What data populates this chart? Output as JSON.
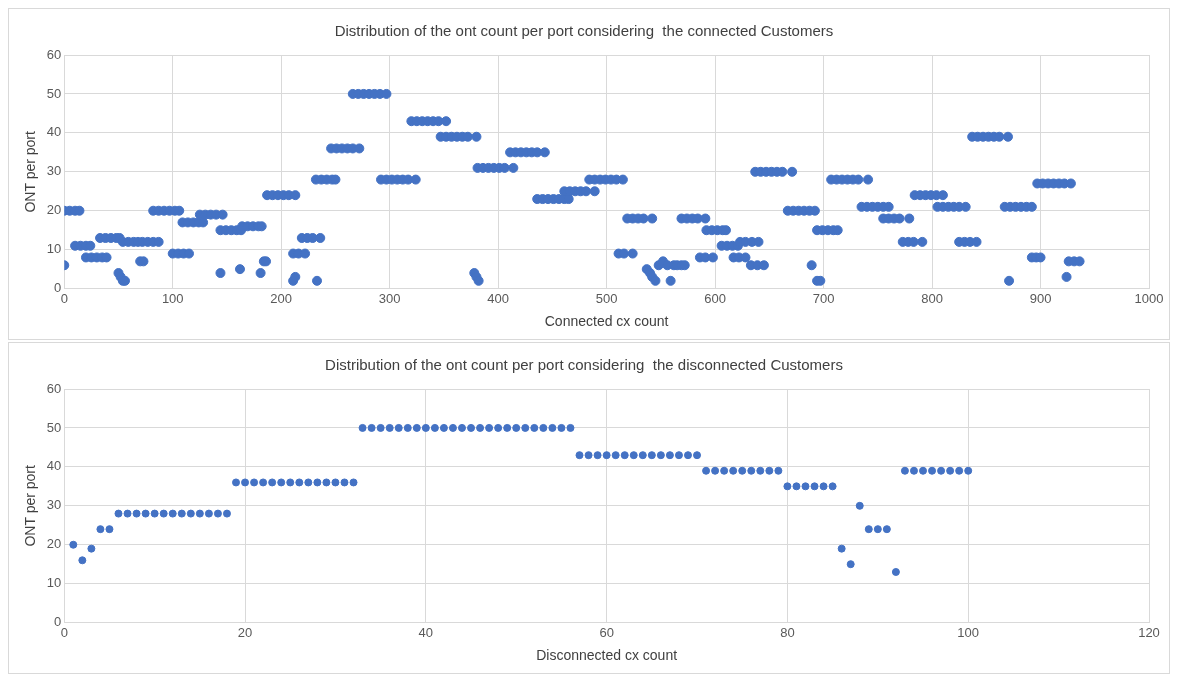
{
  "chart_data": [
    {
      "type": "scatter",
      "title": "Distribution of the ont count per port considering  the connected Customers",
      "xlabel": "Connected cx count",
      "ylabel": "ONT per port",
      "xlim": [
        0,
        1000
      ],
      "xticks": [
        0,
        100,
        200,
        300,
        400,
        500,
        600,
        700,
        800,
        900,
        1000
      ],
      "ylim": [
        0,
        60
      ],
      "yticks": [
        0,
        10,
        20,
        30,
        40,
        50,
        60
      ],
      "grid": true,
      "legend": false,
      "marker": "circle",
      "series": [
        {
          "color": "#4472c4",
          "x": [
            0,
            0,
            5,
            10,
            14,
            10,
            15,
            20,
            24,
            20,
            25,
            30,
            35,
            39,
            33,
            38,
            43,
            48,
            51,
            50,
            52,
            54,
            56,
            54,
            59,
            64,
            68,
            70,
            73,
            72,
            77,
            82,
            87,
            82,
            87,
            92,
            97,
            102,
            106,
            100,
            105,
            110,
            115,
            109,
            114,
            119,
            124,
            128,
            125,
            130,
            135,
            140,
            146,
            144,
            144,
            149,
            154,
            159,
            163,
            162,
            164,
            169,
            174,
            179,
            182,
            181,
            184,
            186,
            187,
            192,
            197,
            202,
            207,
            213,
            211,
            213,
            211,
            216,
            222,
            219,
            224,
            229,
            236,
            233,
            232,
            237,
            242,
            247,
            250,
            246,
            251,
            256,
            261,
            266,
            272,
            266,
            271,
            276,
            281,
            286,
            291,
            297,
            292,
            297,
            302,
            307,
            312,
            317,
            324,
            320,
            325,
            330,
            335,
            340,
            345,
            352,
            347,
            352,
            357,
            362,
            367,
            372,
            380,
            378,
            380,
            382,
            381,
            386,
            391,
            396,
            401,
            406,
            414,
            411,
            416,
            421,
            426,
            431,
            436,
            443,
            436,
            441,
            446,
            451,
            456,
            461,
            465,
            461,
            466,
            471,
            476,
            481,
            489,
            484,
            489,
            494,
            499,
            504,
            509,
            515,
            511,
            516,
            524,
            519,
            524,
            529,
            534,
            542,
            537,
            540,
            542,
            545,
            548,
            552,
            556,
            559,
            562,
            565,
            569,
            572,
            569,
            574,
            579,
            584,
            591,
            586,
            591,
            598,
            592,
            597,
            602,
            607,
            610,
            606,
            611,
            616,
            621,
            617,
            622,
            628,
            623,
            628,
            634,
            640,
            633,
            639,
            645,
            637,
            642,
            647,
            652,
            657,
            662,
            671,
            667,
            672,
            677,
            682,
            687,
            692,
            689,
            694,
            697,
            694,
            699,
            704,
            709,
            713,
            707,
            712,
            717,
            722,
            727,
            732,
            741,
            735,
            740,
            745,
            750,
            755,
            760,
            755,
            760,
            765,
            770,
            779,
            773,
            778,
            783,
            791,
            784,
            789,
            794,
            799,
            804,
            810,
            805,
            810,
            815,
            820,
            825,
            831,
            825,
            830,
            835,
            841,
            837,
            842,
            847,
            852,
            857,
            862,
            870,
            871,
            867,
            872,
            877,
            882,
            887,
            892,
            892,
            896,
            900,
            897,
            902,
            907,
            912,
            917,
            922,
            928,
            924,
            926,
            931,
            936
          ],
          "values": [
            6,
            20,
            20,
            20,
            20,
            11,
            11,
            11,
            11,
            8,
            8,
            8,
            8,
            8,
            13,
            13,
            13,
            13,
            13,
            4,
            3,
            2,
            2,
            12,
            12,
            12,
            12,
            7,
            7,
            12,
            12,
            12,
            12,
            20,
            20,
            20,
            20,
            20,
            20,
            9,
            9,
            9,
            9,
            17,
            17,
            17,
            17,
            17,
            19,
            19,
            19,
            19,
            19,
            4,
            15,
            15,
            15,
            15,
            15,
            5,
            16,
            16,
            16,
            16,
            16,
            4,
            7,
            7,
            24,
            24,
            24,
            24,
            24,
            24,
            2,
            3,
            9,
            9,
            9,
            13,
            13,
            13,
            13,
            2,
            28,
            28,
            28,
            28,
            28,
            36,
            36,
            36,
            36,
            36,
            36,
            50,
            50,
            50,
            50,
            50,
            50,
            50,
            28,
            28,
            28,
            28,
            28,
            28,
            28,
            43,
            43,
            43,
            43,
            43,
            43,
            43,
            39,
            39,
            39,
            39,
            39,
            39,
            39,
            4,
            3,
            2,
            31,
            31,
            31,
            31,
            31,
            31,
            31,
            35,
            35,
            35,
            35,
            35,
            35,
            35,
            23,
            23,
            23,
            23,
            23,
            23,
            23,
            25,
            25,
            25,
            25,
            25,
            25,
            28,
            28,
            28,
            28,
            28,
            28,
            28,
            9,
            9,
            9,
            18,
            18,
            18,
            18,
            18,
            5,
            4,
            3,
            2,
            6,
            7,
            6,
            2,
            6,
            6,
            6,
            6,
            18,
            18,
            18,
            18,
            18,
            8,
            8,
            8,
            15,
            15,
            15,
            15,
            15,
            11,
            11,
            11,
            11,
            8,
            8,
            8,
            12,
            12,
            12,
            12,
            6,
            6,
            6,
            30,
            30,
            30,
            30,
            30,
            30,
            30,
            20,
            20,
            20,
            20,
            20,
            20,
            6,
            2,
            2,
            15,
            15,
            15,
            15,
            15,
            28,
            28,
            28,
            28,
            28,
            28,
            28,
            21,
            21,
            21,
            21,
            21,
            21,
            18,
            18,
            18,
            18,
            18,
            12,
            12,
            12,
            12,
            24,
            24,
            24,
            24,
            24,
            24,
            21,
            21,
            21,
            21,
            21,
            21,
            12,
            12,
            12,
            12,
            39,
            39,
            39,
            39,
            39,
            39,
            39,
            2,
            21,
            21,
            21,
            21,
            21,
            21,
            8,
            8,
            8,
            27,
            27,
            27,
            27,
            27,
            27,
            27,
            3,
            7,
            7,
            7
          ]
        }
      ]
    },
    {
      "type": "scatter",
      "title": "Distribution of the ont count per port considering  the disconnected Customers",
      "xlabel": "Disconnected cx count",
      "ylabel": "ONT per port",
      "xlim": [
        0,
        120
      ],
      "xticks": [
        0,
        20,
        40,
        60,
        80,
        100,
        120
      ],
      "ylim": [
        0,
        60
      ],
      "yticks": [
        0,
        10,
        20,
        30,
        40,
        50,
        60
      ],
      "grid": true,
      "legend": false,
      "marker": "circle",
      "series": [
        {
          "color": "#4472c4",
          "x": [
            1,
            2,
            3,
            4,
            5,
            6,
            7,
            8,
            9,
            10,
            11,
            12,
            13,
            14,
            15,
            16,
            17,
            18,
            19,
            20,
            21,
            22,
            23,
            24,
            25,
            26,
            27,
            28,
            29,
            30,
            31,
            32,
            33,
            34,
            35,
            36,
            37,
            38,
            39,
            40,
            41,
            42,
            43,
            44,
            45,
            46,
            47,
            48,
            49,
            50,
            51,
            52,
            53,
            54,
            55,
            56,
            57,
            58,
            59,
            60,
            61,
            62,
            63,
            64,
            65,
            66,
            67,
            68,
            69,
            70,
            71,
            72,
            73,
            74,
            75,
            76,
            77,
            78,
            79,
            80,
            81,
            82,
            83,
            84,
            85,
            86,
            87,
            88,
            89,
            90,
            91,
            92,
            93,
            94,
            95,
            96,
            97,
            98,
            99,
            100
          ],
          "values": [
            20,
            16,
            19,
            24,
            24,
            28,
            28,
            28,
            28,
            28,
            28,
            28,
            28,
            28,
            28,
            28,
            28,
            28,
            36,
            36,
            36,
            36,
            36,
            36,
            36,
            36,
            36,
            36,
            36,
            36,
            36,
            36,
            50,
            50,
            50,
            50,
            50,
            50,
            50,
            50,
            50,
            50,
            50,
            50,
            50,
            50,
            50,
            50,
            50,
            50,
            50,
            50,
            50,
            50,
            50,
            50,
            43,
            43,
            43,
            43,
            43,
            43,
            43,
            43,
            43,
            43,
            43,
            43,
            43,
            43,
            39,
            39,
            39,
            39,
            39,
            39,
            39,
            39,
            39,
            35,
            35,
            35,
            35,
            35,
            35,
            19,
            15,
            30,
            24,
            24,
            24,
            13,
            39,
            39,
            39,
            39,
            39,
            39,
            39,
            39
          ]
        }
      ]
    }
  ]
}
